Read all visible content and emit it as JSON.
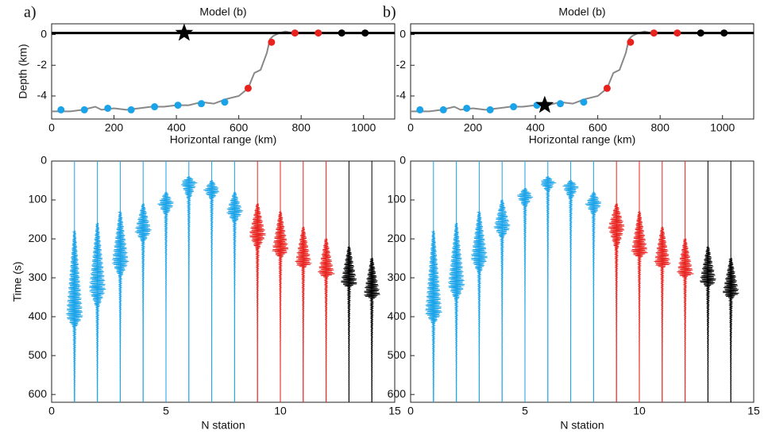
{
  "chart_data": [
    {
      "type": "model",
      "label": "a)",
      "title": "Model (b)",
      "xlabel": "Horizontal range (km)",
      "ylabel": "Depth (km)",
      "xlim": [
        0,
        1100
      ],
      "ylim": [
        -5.5,
        0.7
      ],
      "xticks": [
        0,
        200,
        400,
        600,
        800,
        1000
      ],
      "yticks": [
        -4,
        -2,
        0
      ],
      "surface": 0.1,
      "surface_color": "#000000",
      "profile_color": "#888888",
      "profile_x": [
        0,
        20,
        60,
        100,
        140,
        160,
        200,
        240,
        280,
        320,
        360,
        400,
        440,
        480,
        520,
        560,
        600,
        630,
        650,
        670,
        690,
        700,
        710,
        730,
        750,
        770,
        800,
        1100
      ],
      "profile_depth": [
        -5,
        -5,
        -5,
        -4.9,
        -4.7,
        -4.9,
        -4.8,
        -4.9,
        -4.8,
        -4.7,
        -4.7,
        -4.6,
        -4.6,
        -4.4,
        -4.5,
        -4.2,
        -4,
        -3.5,
        -2.5,
        -2.3,
        -1.2,
        -0.3,
        -0.1,
        0.1,
        0.2,
        0.1,
        0.1,
        0.1
      ],
      "stations_x": [
        30,
        105,
        180,
        255,
        330,
        405,
        480,
        555,
        630,
        705,
        780,
        855,
        930,
        1005
      ],
      "stations_depth": [
        -4.9,
        -4.9,
        -4.8,
        -4.9,
        -4.7,
        -4.6,
        -4.5,
        -4.4,
        -3.5,
        -0.5,
        0.1,
        0.1,
        0.1,
        0.1
      ],
      "station_colors": [
        "#1aa3e8",
        "#1aa3e8",
        "#1aa3e8",
        "#1aa3e8",
        "#1aa3e8",
        "#1aa3e8",
        "#1aa3e8",
        "#1aa3e8",
        "#e8231f",
        "#e8231f",
        "#e8231f",
        "#e8231f",
        "#000000",
        "#000000"
      ],
      "source_x": 425,
      "source_depth": 0.1
    },
    {
      "type": "model",
      "label": "b)",
      "title": "Model (b)",
      "xlabel": "Horizontal range (km)",
      "ylabel": "",
      "xlim": [
        0,
        1100
      ],
      "ylim": [
        -5.5,
        0.7
      ],
      "xticks": [
        0,
        200,
        400,
        600,
        800,
        1000
      ],
      "yticks": [
        -4,
        -2,
        0
      ],
      "surface": 0.1,
      "surface_color": "#000000",
      "profile_color": "#888888",
      "profile_x": [
        0,
        20,
        60,
        100,
        140,
        160,
        200,
        240,
        280,
        320,
        360,
        400,
        440,
        480,
        520,
        560,
        600,
        630,
        650,
        670,
        690,
        700,
        710,
        730,
        750,
        770,
        800,
        1100
      ],
      "profile_depth": [
        -5,
        -5,
        -5,
        -4.9,
        -4.7,
        -4.9,
        -4.8,
        -4.9,
        -4.8,
        -4.7,
        -4.7,
        -4.6,
        -4.6,
        -4.4,
        -4.5,
        -4.2,
        -4,
        -3.5,
        -2.5,
        -2.3,
        -1.2,
        -0.3,
        -0.1,
        0.1,
        0.2,
        0.1,
        0.1,
        0.1
      ],
      "stations_x": [
        30,
        105,
        180,
        255,
        330,
        405,
        480,
        555,
        630,
        705,
        780,
        855,
        930,
        1005
      ],
      "stations_depth": [
        -4.9,
        -4.9,
        -4.8,
        -4.9,
        -4.7,
        -4.6,
        -4.5,
        -4.4,
        -3.5,
        -0.5,
        0.1,
        0.1,
        0.1,
        0.1
      ],
      "station_colors": [
        "#1aa3e8",
        "#1aa3e8",
        "#1aa3e8",
        "#1aa3e8",
        "#1aa3e8",
        "#1aa3e8",
        "#1aa3e8",
        "#1aa3e8",
        "#e8231f",
        "#e8231f",
        "#e8231f",
        "#e8231f",
        "#000000",
        "#000000"
      ],
      "source_x": 430,
      "source_depth": -4.6
    },
    {
      "type": "seismogram",
      "xlabel": "N station",
      "ylabel": "Time (s)",
      "xlim": [
        0,
        15
      ],
      "ylim": [
        0,
        620
      ],
      "xticks": [
        0,
        5,
        10,
        15
      ],
      "yticks": [
        0,
        100,
        200,
        300,
        400,
        500,
        600
      ],
      "stations": [
        1,
        2,
        3,
        4,
        5,
        6,
        7,
        8,
        9,
        10,
        11,
        12,
        13,
        14
      ],
      "start": [
        180,
        160,
        130,
        110,
        80,
        40,
        50,
        80,
        110,
        130,
        170,
        200,
        220,
        250
      ],
      "peak": [
        400,
        330,
        260,
        180,
        110,
        55,
        75,
        130,
        190,
        230,
        265,
        290,
        315,
        345
      ],
      "end": [
        430,
        380,
        300,
        210,
        140,
        100,
        100,
        160,
        230,
        250,
        275,
        300,
        325,
        355
      ],
      "colors": [
        "#1aa3e8",
        "#1aa3e8",
        "#1aa3e8",
        "#1aa3e8",
        "#1aa3e8",
        "#1aa3e8",
        "#1aa3e8",
        "#1aa3e8",
        "#e8231f",
        "#e8231f",
        "#e8231f",
        "#e8231f",
        "#000000",
        "#000000"
      ]
    },
    {
      "type": "seismogram",
      "xlabel": "N station",
      "ylabel": "",
      "xlim": [
        0,
        15
      ],
      "ylim": [
        0,
        620
      ],
      "xticks": [
        0,
        5,
        10,
        15
      ],
      "yticks": [
        0,
        100,
        200,
        300,
        400,
        500,
        600
      ],
      "stations": [
        1,
        2,
        3,
        4,
        5,
        6,
        7,
        8,
        9,
        10,
        11,
        12,
        13,
        14
      ],
      "start": [
        180,
        160,
        130,
        100,
        70,
        40,
        50,
        80,
        110,
        130,
        170,
        200,
        220,
        250
      ],
      "peak": [
        390,
        320,
        250,
        170,
        90,
        55,
        65,
        110,
        170,
        235,
        265,
        290,
        310,
        340
      ],
      "end": [
        420,
        360,
        290,
        200,
        120,
        80,
        100,
        140,
        230,
        250,
        275,
        300,
        325,
        355
      ],
      "colors": [
        "#1aa3e8",
        "#1aa3e8",
        "#1aa3e8",
        "#1aa3e8",
        "#1aa3e8",
        "#1aa3e8",
        "#1aa3e8",
        "#1aa3e8",
        "#e8231f",
        "#e8231f",
        "#e8231f",
        "#e8231f",
        "#000000",
        "#000000"
      ]
    }
  ]
}
